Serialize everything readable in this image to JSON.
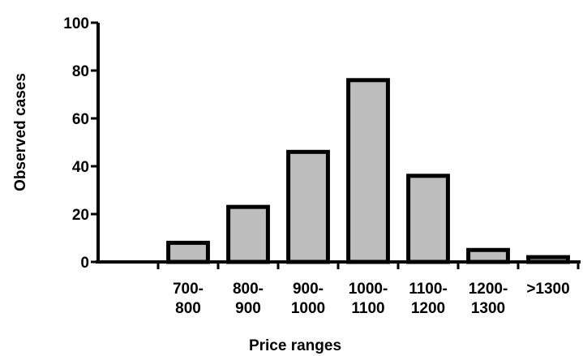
{
  "chart_data": {
    "type": "bar",
    "title": "",
    "xlabel": "Price ranges",
    "ylabel": "Observed cases",
    "categories": [
      [
        "700-",
        "800"
      ],
      [
        "800-",
        "900"
      ],
      [
        "900-",
        "1000"
      ],
      [
        "1000-",
        "1100"
      ],
      [
        "1100-",
        "1200"
      ],
      [
        "1200-",
        "1300"
      ],
      [
        ">1300"
      ]
    ],
    "values": [
      8,
      23,
      46,
      76,
      36,
      5,
      2
    ],
    "ylim": [
      0,
      100
    ],
    "yticks": [
      0,
      20,
      40,
      60,
      80,
      100
    ],
    "bar_fill": "#bdbdbd",
    "bar_stroke": "#000000",
    "grid": false,
    "legend": "none"
  }
}
